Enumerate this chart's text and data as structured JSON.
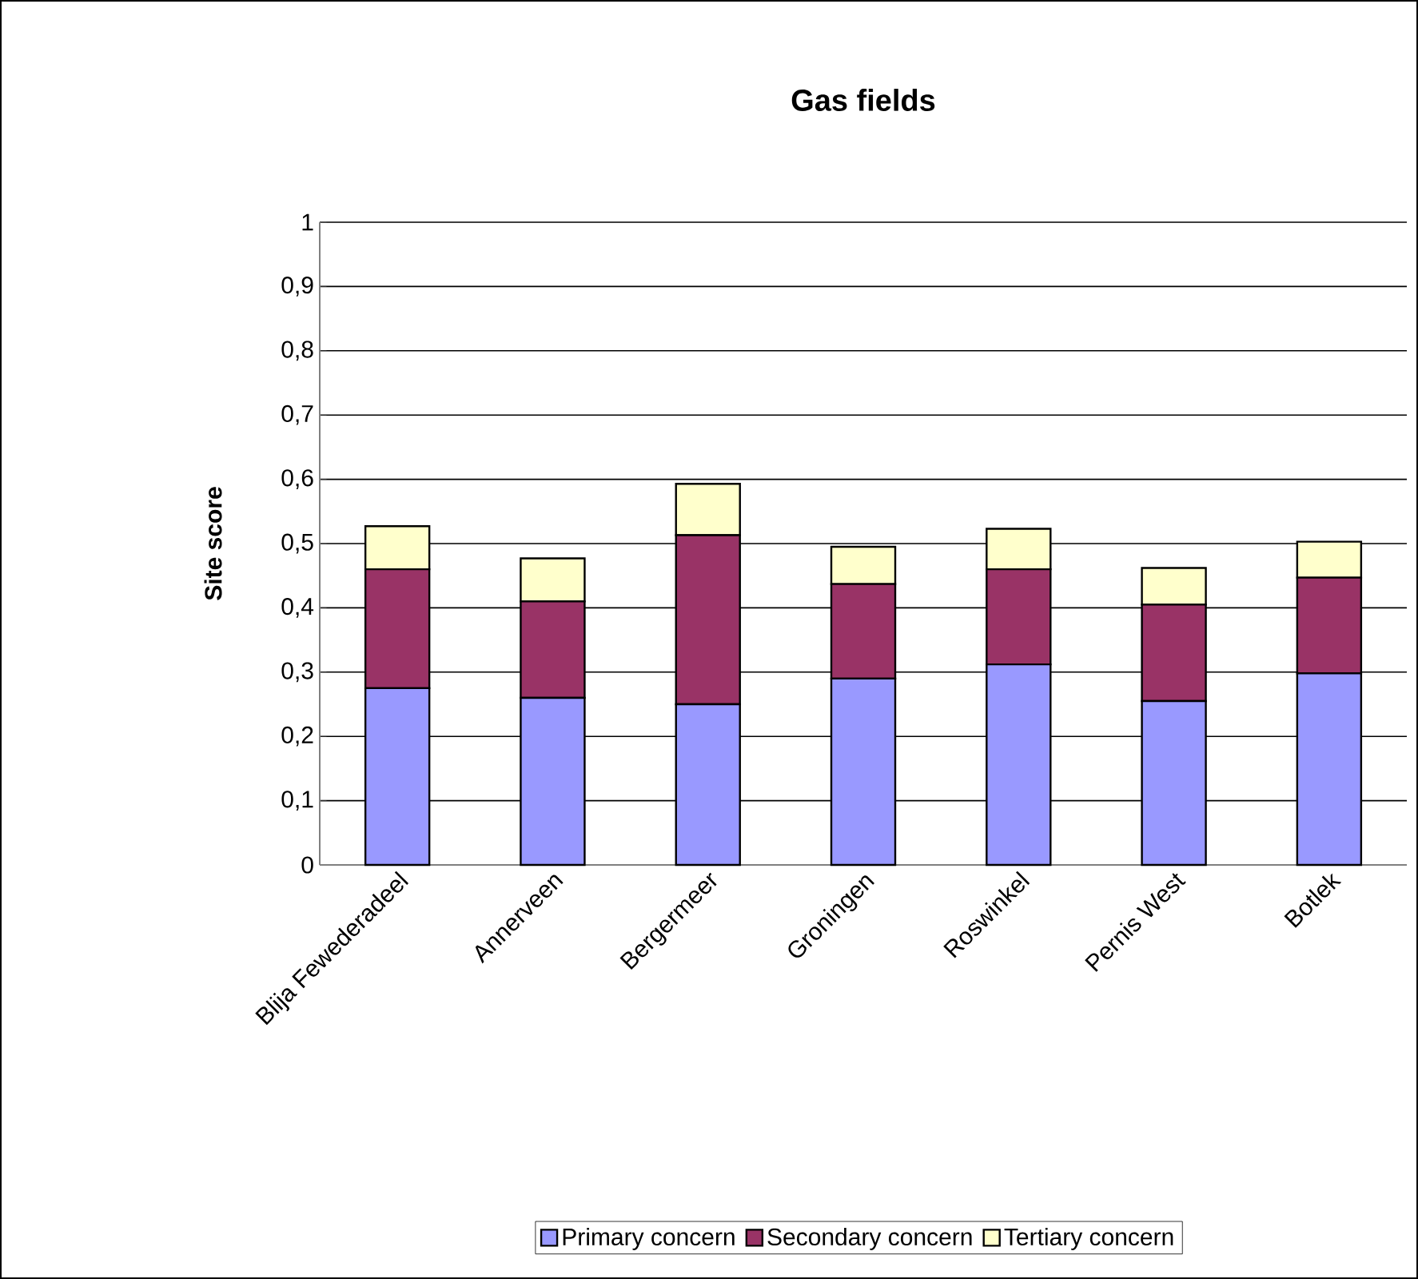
{
  "chart_data": {
    "type": "bar",
    "title": "Gas fields",
    "ylabel": "Site score",
    "stacked": true,
    "categories": [
      "Blija Fewederadeel",
      "Annerveen",
      "Bergermeer",
      "Groningen",
      "Roswinkel",
      "Pernis West",
      "Botlek"
    ],
    "series": [
      {
        "name": "Primary concern",
        "color": "#9999ff",
        "values": [
          0.275,
          0.26,
          0.25,
          0.29,
          0.312,
          0.255,
          0.298
        ]
      },
      {
        "name": "Secondary concern",
        "color": "#993366",
        "values": [
          0.185,
          0.15,
          0.263,
          0.147,
          0.148,
          0.15,
          0.149
        ]
      },
      {
        "name": "Tertiary concern",
        "color": "#ffffcc",
        "values": [
          0.067,
          0.067,
          0.08,
          0.058,
          0.063,
          0.057,
          0.056
        ]
      }
    ],
    "ylim": [
      0,
      1
    ],
    "yticks": [
      0,
      {
        "value": 0.1,
        "label": "0,1"
      },
      {
        "value": 0.2,
        "label": "0,2"
      },
      {
        "value": 0.3,
        "label": "0,3"
      },
      {
        "value": 0.4,
        "label": "0,4"
      },
      {
        "value": 0.5,
        "label": "0,5"
      },
      {
        "value": 0.6,
        "label": "0,6"
      },
      {
        "value": 0.7,
        "label": "0,7"
      },
      {
        "value": 0.8,
        "label": "0,8"
      },
      {
        "value": 0.9,
        "label": "0,9"
      },
      1
    ],
    "grid": "y",
    "legend": "bottom"
  }
}
